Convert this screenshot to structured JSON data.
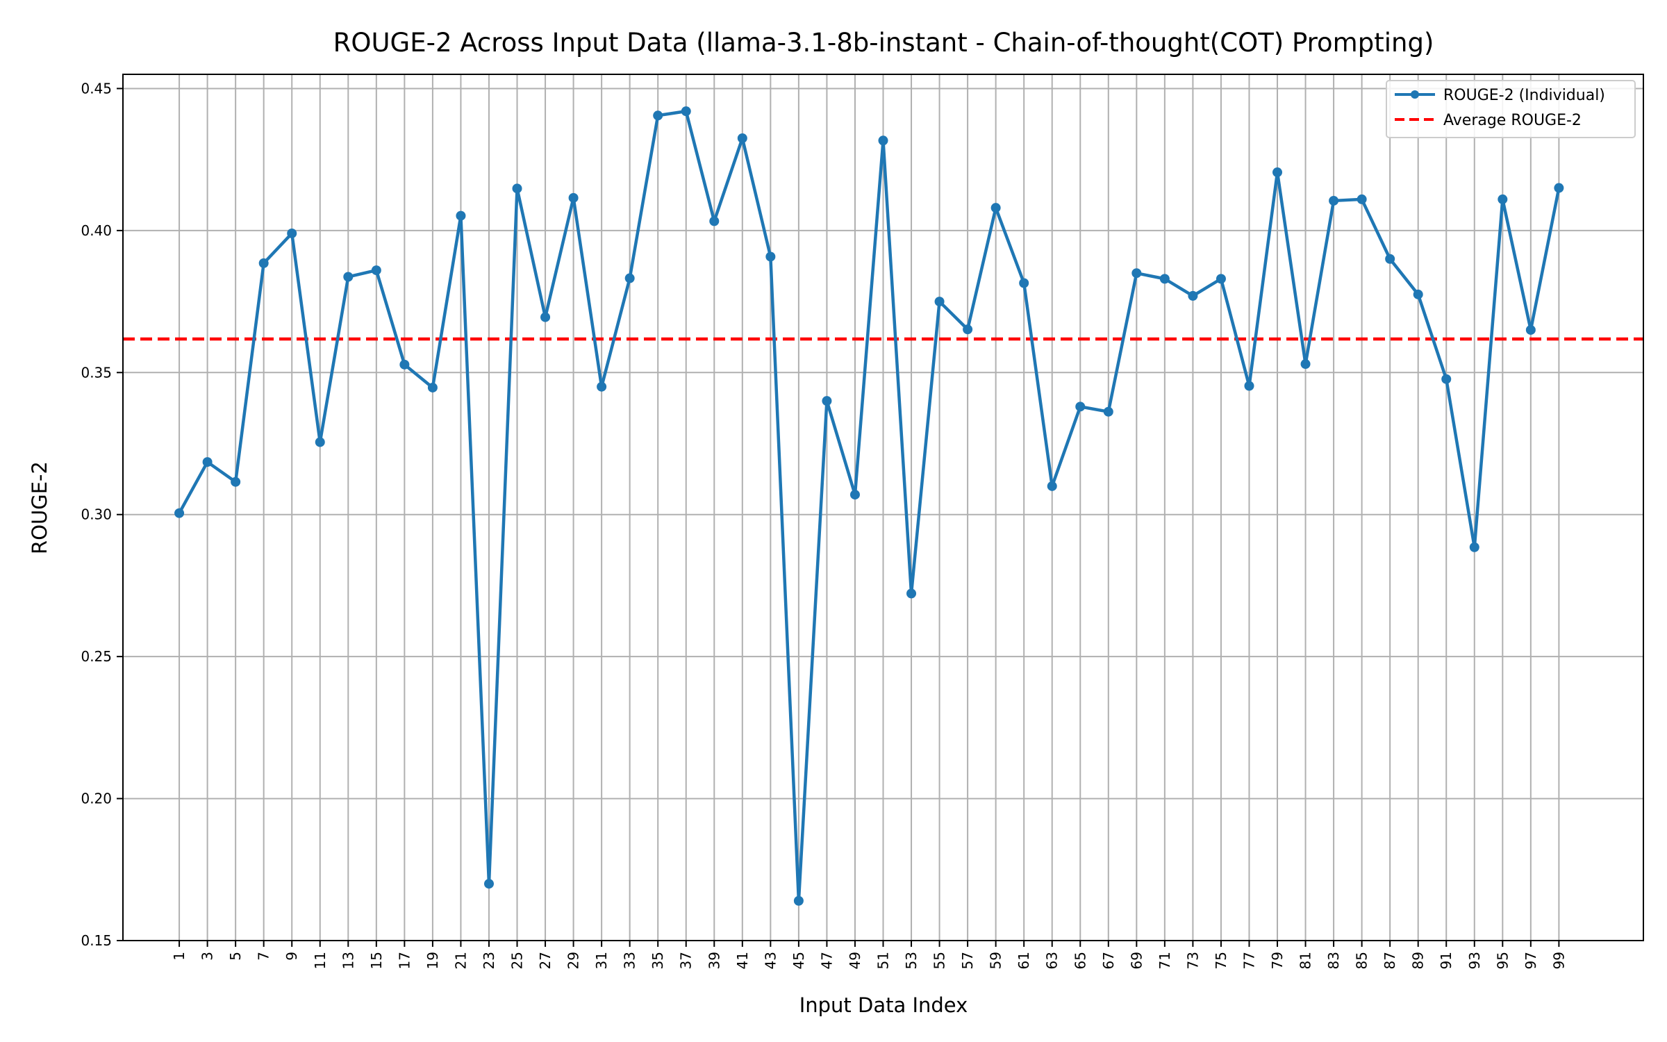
{
  "chart_data": {
    "type": "line",
    "title": "ROUGE-2 Across Input Data (llama-3.1-8b-instant - Chain-of-thought(COT) Prompting)",
    "xlabel": "Input Data Index",
    "ylabel": "ROUGE-2",
    "xlim": [
      -3,
      105
    ],
    "ylim": [
      0.15,
      0.455
    ],
    "yticks": [
      0.15,
      0.2,
      0.25,
      0.3,
      0.35,
      0.4,
      0.45
    ],
    "ytick_labels": [
      "0.15",
      "0.20",
      "0.25",
      "0.30",
      "0.35",
      "0.40",
      "0.45"
    ],
    "xticks": [
      1,
      3,
      5,
      7,
      9,
      11,
      13,
      15,
      17,
      19,
      21,
      23,
      25,
      27,
      29,
      31,
      33,
      35,
      37,
      39,
      41,
      43,
      45,
      47,
      49,
      51,
      53,
      55,
      57,
      59,
      61,
      63,
      65,
      67,
      69,
      71,
      73,
      75,
      77,
      79,
      81,
      83,
      85,
      87,
      89,
      91,
      93,
      95,
      97,
      99
    ],
    "xtick_labels": [
      "1",
      "3",
      "5",
      "7",
      "9",
      "11",
      "13",
      "15",
      "17",
      "19",
      "21",
      "23",
      "25",
      "27",
      "29",
      "31",
      "33",
      "35",
      "37",
      "39",
      "41",
      "43",
      "45",
      "47",
      "49",
      "51",
      "53",
      "55",
      "57",
      "59",
      "61",
      "63",
      "65",
      "67",
      "69",
      "71",
      "73",
      "75",
      "77",
      "79",
      "81",
      "83",
      "85",
      "87",
      "89",
      "91",
      "93",
      "95",
      "97",
      "99"
    ],
    "grid": true,
    "legend_position": "top-right",
    "series": [
      {
        "name": "ROUGE-2 (Individual)",
        "style": "line-marker",
        "color": "#1f77b4",
        "x": [
          1,
          3,
          5,
          7,
          9,
          11,
          13,
          15,
          17,
          19,
          21,
          23,
          25,
          27,
          29,
          31,
          33,
          35,
          37,
          39,
          41,
          43,
          45,
          47,
          49,
          51,
          53,
          55,
          57,
          59,
          61,
          63,
          65,
          67,
          69,
          71,
          73,
          75,
          77,
          79,
          81,
          83,
          85,
          87,
          89,
          91,
          93,
          95,
          97,
          99
        ],
        "values": [
          0.3005,
          0.3185,
          0.3115,
          0.3885,
          0.399,
          0.3255,
          0.3837,
          0.386,
          0.3528,
          0.3447,
          0.4052,
          0.17,
          0.4148,
          0.3695,
          0.4115,
          0.345,
          0.3832,
          0.4405,
          0.442,
          0.4033,
          0.4325,
          0.3908,
          0.164,
          0.34,
          0.307,
          0.4317,
          0.2722,
          0.375,
          0.3652,
          0.408,
          0.3815,
          0.31,
          0.338,
          0.3362,
          0.385,
          0.383,
          0.377,
          0.383,
          0.3453,
          0.4205,
          0.353,
          0.4105,
          0.411,
          0.39,
          0.3775,
          0.3477,
          0.2885,
          0.411,
          0.365,
          0.415
        ]
      },
      {
        "name": "Average ROUGE-2",
        "style": "dashed-horizontal",
        "color": "#ff0000",
        "value": 0.3618
      }
    ]
  }
}
